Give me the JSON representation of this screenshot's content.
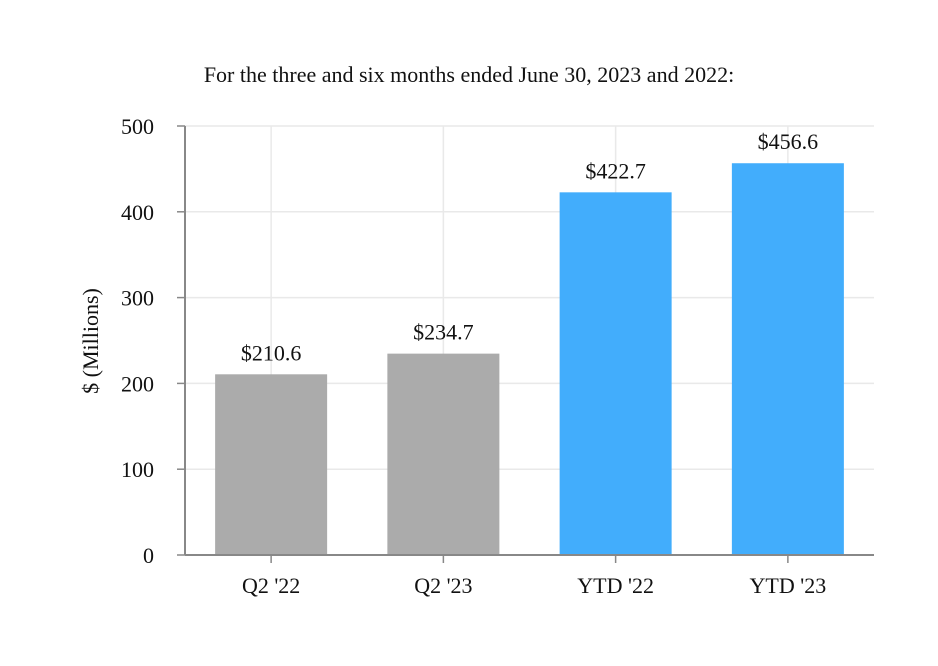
{
  "chart_data": {
    "type": "bar",
    "title": "For the three and six months ended June 30, 2023 and 2022:",
    "xlabel": "",
    "ylabel": "$ (Millions)",
    "ylim": [
      0,
      500
    ],
    "yticks": [
      0,
      100,
      200,
      300,
      400,
      500
    ],
    "ytick_labels": [
      "0",
      "100",
      "200",
      "300",
      "400",
      "500"
    ],
    "categories": [
      "Q2 '22",
      "Q2 '23",
      "YTD '22",
      "YTD '23"
    ],
    "values": [
      210.6,
      234.7,
      422.7,
      456.6
    ],
    "data_labels": [
      "$210.6",
      "$234.7",
      "$422.7",
      "$456.6"
    ],
    "bar_colors": [
      "#ababab",
      "#ababab",
      "#42adfc",
      "#42adfc"
    ],
    "grid": true,
    "legend": "none"
  }
}
